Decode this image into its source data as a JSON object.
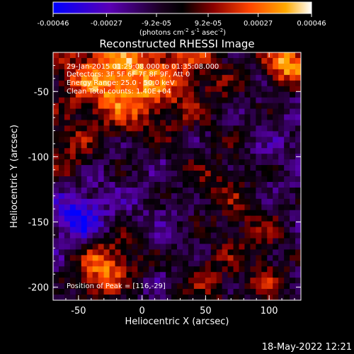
{
  "chart_data": {
    "type": "heatmap",
    "title": "Reconstructed RHESSI Image",
    "xlabel": "Heliocentric X (arcsec)",
    "ylabel": "Heliocentric Y (arcsec)",
    "xlim": [
      -70,
      125
    ],
    "ylim": [
      -210,
      -20
    ],
    "x_ticks": [
      -50,
      0,
      50,
      100
    ],
    "y_ticks": [
      -50,
      -100,
      -150,
      -200
    ],
    "colorbar": {
      "ticks": [
        "-0.00046",
        "-0.00027",
        "-9.2e-05",
        "9.2e-05",
        "0.00027",
        "0.00046"
      ],
      "tick_values": [
        -0.00046,
        -0.00027,
        -9.2e-05,
        9.2e-05,
        0.00027,
        0.00046
      ],
      "range": [
        -0.00046,
        0.00046
      ],
      "units_prefix": "(photons cm",
      "units_sup1": "-2",
      "units_mid1": " s",
      "units_sup2": "-1",
      "units_mid2": " asec",
      "units_sup3": "-2",
      "units_suffix": ")",
      "colormap": [
        "#0000ff",
        "#5a00b4",
        "#000000",
        "#8a0000",
        "#ff4400",
        "#ffaa00",
        "#ffffff"
      ]
    },
    "peak": [
      116,
      -29
    ]
  },
  "annotations": {
    "time_range": "29-Jan-2015 01:29:08.000 to 01:35:08.000",
    "detectors": "Detectors: 3F 5F 6F 7F 8F 9F, Att 0",
    "energy": "Energy Range: 25.0 - 50.0 keV",
    "method": "Clean    Total counts: 1.40E+04",
    "peak_text": "Position of Peak = [116,-29]"
  },
  "footer": {
    "date": "18-May-2022 12:21"
  }
}
